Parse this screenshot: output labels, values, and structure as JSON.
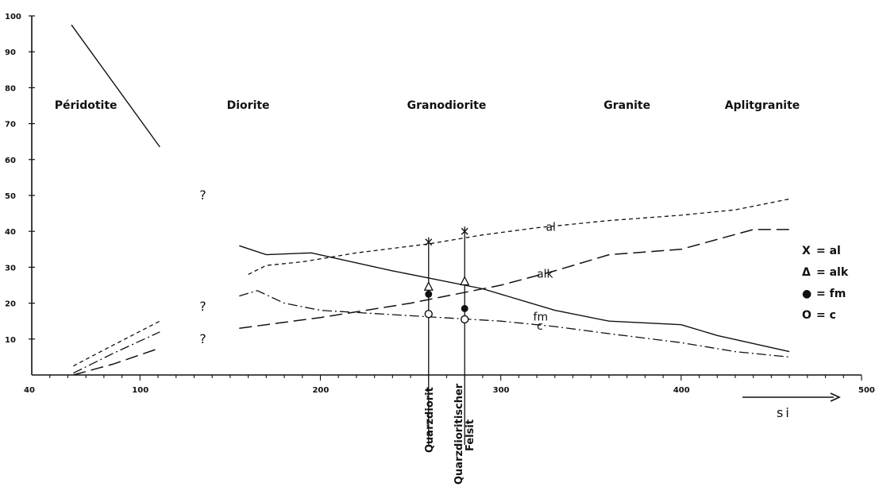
{
  "chart_data": {
    "type": "line",
    "x_ticks": [
      "40",
      "100",
      "200",
      "300",
      "400",
      "500"
    ],
    "y_ticks": [
      "10",
      "20",
      "30",
      "40",
      "50",
      "60",
      "70",
      "80",
      "90",
      "100"
    ],
    "xlim": [
      40,
      500
    ],
    "ylim": [
      0,
      100
    ],
    "xlabel": "si",
    "rock_types": [
      {
        "label": "Péridotite",
        "si": 70
      },
      {
        "label": "Diorite",
        "si": 160
      },
      {
        "label": "Granodiorite",
        "si": 270
      },
      {
        "label": "Granite",
        "si": 370
      },
      {
        "label": "Aplitgranite",
        "si": 445
      }
    ],
    "series": [
      {
        "name": "al",
        "style": "dashed-short",
        "points": [
          [
            160,
            28
          ],
          [
            170,
            30.5
          ],
          [
            190,
            31.5
          ],
          [
            220,
            34
          ],
          [
            260,
            36.5
          ],
          [
            290,
            39
          ],
          [
            320,
            41
          ],
          [
            360,
            43
          ],
          [
            400,
            44.5
          ],
          [
            430,
            46
          ],
          [
            460,
            49
          ]
        ],
        "label_at": [
          325,
          41
        ]
      },
      {
        "name": "alk",
        "style": "dashed-long",
        "points": [
          [
            155,
            13
          ],
          [
            200,
            16
          ],
          [
            250,
            20
          ],
          [
            300,
            25
          ],
          [
            330,
            29
          ],
          [
            360,
            33.5
          ],
          [
            400,
            35
          ],
          [
            440,
            40.5
          ],
          [
            460,
            40.5
          ]
        ],
        "label_at": [
          320,
          28
        ]
      },
      {
        "name": "fm",
        "style": "solid",
        "points": [
          [
            155,
            36
          ],
          [
            170,
            33.5
          ],
          [
            195,
            34
          ],
          [
            240,
            29
          ],
          [
            290,
            24
          ],
          [
            330,
            18
          ],
          [
            360,
            15
          ],
          [
            400,
            14
          ],
          [
            420,
            11
          ],
          [
            460,
            6.5
          ]
        ],
        "label_at": [
          318,
          16
        ]
      },
      {
        "name": "c",
        "style": "dash-dot",
        "points": [
          [
            155,
            22
          ],
          [
            165,
            23.5
          ],
          [
            180,
            20
          ],
          [
            200,
            18
          ],
          [
            250,
            16.5
          ],
          [
            300,
            15
          ],
          [
            330,
            13.5
          ],
          [
            360,
            11.5
          ],
          [
            400,
            9
          ],
          [
            430,
            6.5
          ],
          [
            460,
            5
          ]
        ],
        "label_at": [
          320,
          13.5
        ]
      }
    ],
    "peridotite_segments": [
      {
        "name": "fm",
        "style": "solid",
        "points": [
          [
            62,
            97.5
          ],
          [
            111,
            63.5
          ]
        ]
      },
      {
        "name": "al",
        "style": "dashed-short",
        "points": [
          [
            63,
            2.5
          ],
          [
            82,
            7.5
          ],
          [
            111,
            15
          ]
        ]
      },
      {
        "name": "c",
        "style": "dash-dot",
        "points": [
          [
            63,
            0.5
          ],
          [
            85,
            6
          ],
          [
            111,
            12
          ]
        ]
      },
      {
        "name": "alk",
        "style": "dashed-long",
        "points": [
          [
            63,
            0
          ],
          [
            85,
            3
          ],
          [
            111,
            7.5
          ]
        ]
      }
    ],
    "question_marks": [
      {
        "text": "?",
        "si": 133,
        "y": 50
      },
      {
        "text": "?",
        "si": 133,
        "y": 19
      },
      {
        "text": "?",
        "si": 133,
        "y": 10
      }
    ],
    "samples": [
      {
        "name": "Quarzdiorit",
        "si": 260,
        "al": 37,
        "alk": 24.5,
        "fm": 22.5,
        "c": 17
      },
      {
        "name": "Quarzdioritischer Felsit",
        "si": 280,
        "al": 40,
        "alk": 26,
        "fm": 18.5,
        "c": 15.5
      }
    ],
    "legend": [
      {
        "marker": "X",
        "text": "= al"
      },
      {
        "marker": "Δ",
        "text": "= alk"
      },
      {
        "marker": "●",
        "text": "= fm"
      },
      {
        "marker": "O",
        "text": "= c"
      }
    ]
  }
}
